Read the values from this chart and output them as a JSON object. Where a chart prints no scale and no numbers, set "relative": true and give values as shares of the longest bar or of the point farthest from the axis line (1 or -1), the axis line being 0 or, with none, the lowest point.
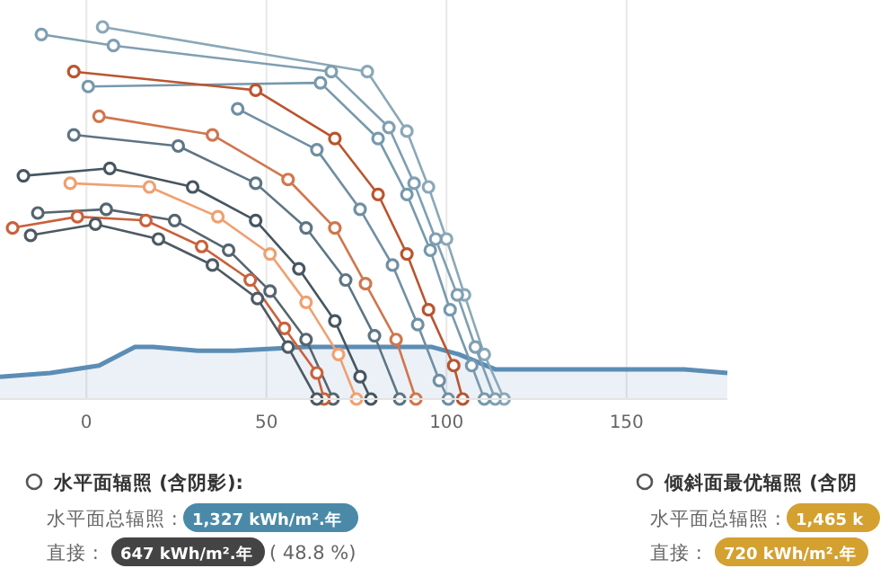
{
  "chart_data": {
    "type": "line",
    "relative": true,
    "xlim": [
      -24,
      178
    ],
    "xticks": [
      0,
      50,
      100,
      150
    ],
    "grid": "x",
    "marker": "circle",
    "legend": false,
    "annotations": [
      "水平面辐照 (含阴影):",
      "水平面总辐照 :",
      "1,327 kWh/m².年",
      "直接 :",
      "647 kWh/m².年",
      "( 48.8 %)",
      "倾斜面最优辐照 (含阴",
      "水平面总辐照 :",
      "1,465 k",
      "直接 :",
      "720 kWh/m².年"
    ],
    "series": [
      {
        "type": "area",
        "marker": "none",
        "color": "#5b8db5",
        "x": [
          -24,
          -10,
          3.5,
          13.5,
          18.5,
          31,
          41,
          61,
          76,
          96,
          103.5,
          108.5,
          113.5,
          121,
          131,
          141,
          151,
          166,
          178
        ],
        "values": [
          0.06,
          0.07,
          0.09,
          0.14,
          0.14,
          0.13,
          0.13,
          0.14,
          0.14,
          0.14,
          0.12,
          0.1,
          0.08,
          0.08,
          0.08,
          0.08,
          0.08,
          0.08,
          0.07
        ]
      },
      {
        "color": "#8aa8b8",
        "x": [
          4.5,
          78,
          89,
          95,
          100,
          105,
          110.5,
          116
        ],
        "values": [
          1,
          0.88,
          0.72,
          0.57,
          0.43,
          0.28,
          0.12,
          0
        ]
      },
      {
        "color": "#7f9fb2",
        "x": [
          -12.5,
          7.5,
          68,
          84,
          91,
          97,
          103,
          108,
          113.5
        ],
        "values": [
          0.98,
          0.95,
          0.88,
          0.73,
          0.58,
          0.43,
          0.28,
          0.14,
          0
        ]
      },
      {
        "color": "#7699ad",
        "x": [
          0.5,
          65,
          81,
          89,
          95.5,
          101,
          107,
          110.5
        ],
        "values": [
          0.84,
          0.85,
          0.7,
          0.55,
          0.4,
          0.24,
          0.09,
          0
        ]
      },
      {
        "color": "#b9552f",
        "x": [
          -3.5,
          47,
          69,
          81,
          89,
          95,
          102,
          104.5
        ],
        "values": [
          0.88,
          0.83,
          0.7,
          0.55,
          0.39,
          0.24,
          0.09,
          0
        ]
      },
      {
        "color": "#6f8fa3",
        "x": [
          42,
          64,
          76,
          85,
          92,
          98,
          100.5
        ],
        "values": [
          0.78,
          0.67,
          0.51,
          0.36,
          0.2,
          0.05,
          0
        ]
      },
      {
        "color": "#d0764e",
        "x": [
          3.5,
          35,
          56,
          69,
          77.5,
          86,
          91.5
        ],
        "values": [
          0.76,
          0.71,
          0.59,
          0.46,
          0.31,
          0.16,
          0
        ]
      },
      {
        "color": "#5d7585",
        "x": [
          -3.5,
          25.5,
          47,
          61,
          72,
          80,
          87
        ],
        "values": [
          0.71,
          0.68,
          0.58,
          0.46,
          0.32,
          0.17,
          0
        ]
      },
      {
        "color": "#465661",
        "x": [
          -17.5,
          6.5,
          29.5,
          47,
          59,
          69,
          76,
          79
        ],
        "values": [
          0.6,
          0.62,
          0.57,
          0.48,
          0.35,
          0.21,
          0.06,
          0
        ]
      },
      {
        "color": "#f0a070",
        "x": [
          -4.5,
          17.5,
          36.5,
          51,
          61,
          70,
          75
        ],
        "values": [
          0.58,
          0.57,
          0.49,
          0.39,
          0.26,
          0.12,
          0
        ]
      },
      {
        "color": "#556570",
        "x": [
          -13.5,
          5.5,
          24.5,
          39.5,
          51,
          61,
          68.5
        ],
        "values": [
          0.5,
          0.51,
          0.48,
          0.4,
          0.29,
          0.16,
          0
        ]
      },
      {
        "color": "#c9613b",
        "x": [
          -20.5,
          -2.5,
          16.5,
          32,
          45.5,
          55,
          64,
          66
        ],
        "values": [
          0.46,
          0.49,
          0.48,
          0.41,
          0.32,
          0.19,
          0.07,
          0
        ]
      },
      {
        "color": "#4d5a63",
        "x": [
          -15.5,
          2.5,
          20,
          35,
          47.5,
          56,
          64
        ],
        "values": [
          0.44,
          0.47,
          0.43,
          0.36,
          0.27,
          0.14,
          0
        ]
      }
    ]
  }
}
